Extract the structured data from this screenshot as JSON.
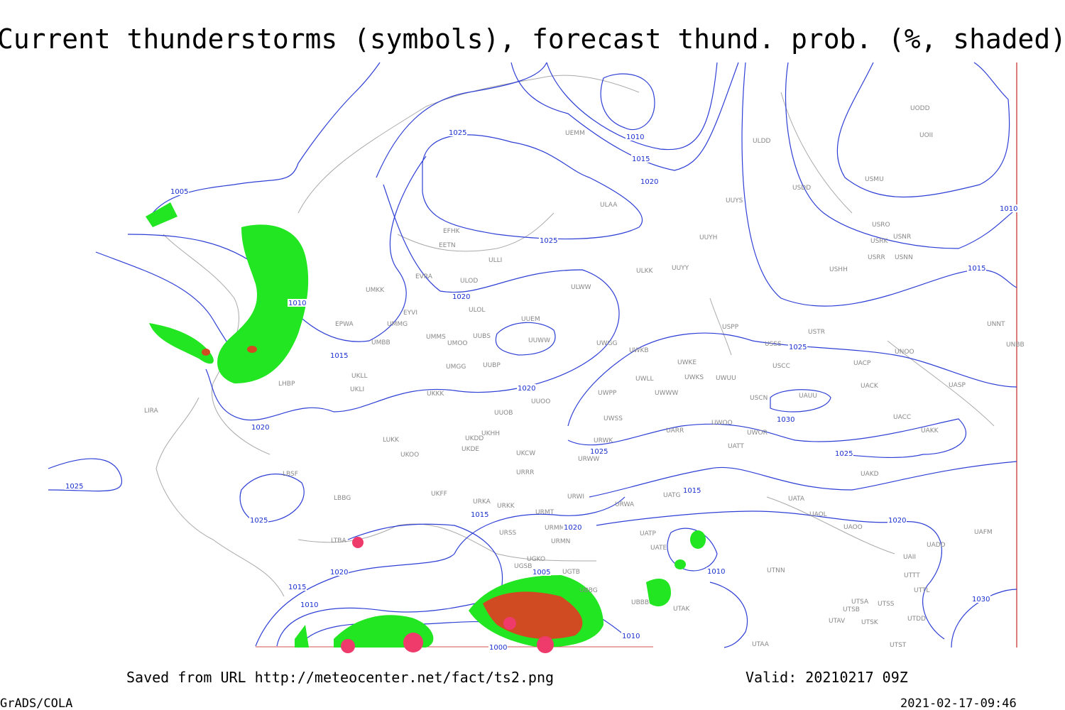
{
  "title": "Current thunderstorms (symbols), forecast thund. prob. (%, shaded)",
  "stations": [
    "ULDD",
    "UODD",
    "UOII",
    "USMU",
    "USDD",
    "UUYS",
    "ULAA",
    "USRO",
    "USRK",
    "USNR",
    "USRR",
    "USNN",
    "EFHK",
    "EETN",
    "UUYH",
    "USHH",
    "ULLI",
    "ULKK",
    "UUYY",
    "EVRA",
    "ULOD",
    "ULWW",
    "UMKK",
    "ULOL",
    "EYVI",
    "UUEM",
    "EPWA",
    "UMMG",
    "USPP",
    "USTR",
    "UNNT",
    "UMMS",
    "UMOO",
    "UUBS",
    "UUWW",
    "UWGG",
    "UWKB",
    "USSS",
    "UNOO",
    "UNBB",
    "UMBB",
    "UWKE",
    "UWKS",
    "UWUU",
    "USCC",
    "UACP",
    "UMGG",
    "UUBP",
    "UKLL",
    "UKLI",
    "UWLL",
    "UWWW",
    "USCN",
    "UAUU",
    "UACK",
    "UASP",
    "LHBP",
    "UKKK",
    "UWPP",
    "UUOO",
    "LIRA",
    "UUOB",
    "UWSS",
    "UACC",
    "UKHH",
    "UAKK",
    "UARR",
    "UWOO",
    "UWOR",
    "LUKK",
    "UKDD",
    "UKDE",
    "URWK",
    "UATT",
    "UKOO",
    "UKCW",
    "URWW",
    "UAKD",
    "LBSF",
    "URRR",
    "UKFF",
    "URKA",
    "URKK",
    "URWI",
    "UATG",
    "URWA",
    "UATA",
    "LBBG",
    "URMT",
    "UAOL",
    "UAOO",
    "URSS",
    "URMM",
    "UAFM",
    "UATP",
    "LTBA",
    "URMN",
    "UATE",
    "UADD",
    "UGKO",
    "UAII",
    "UGSB",
    "UGTB",
    "UTNN",
    "UTTT",
    "UBBG",
    "UBBB",
    "UTAK",
    "UTTL",
    "UTSA",
    "UTSS",
    "UTSB",
    "UTAV",
    "UTSK",
    "UTDD",
    "UTAA",
    "UTST",
    "UEMM"
  ],
  "isobar_labels": [
    "1005",
    "1025",
    "1010",
    "1015",
    "1020",
    "1010",
    "1025",
    "1015",
    "1020",
    "1010",
    "1015",
    "1025",
    "1020",
    "1030",
    "1020",
    "1025",
    "1025",
    "1025",
    "1015",
    "1025",
    "1015",
    "1020",
    "1020",
    "1020",
    "1010",
    "1005",
    "1015",
    "1030",
    "1010",
    "1010",
    "1000"
  ],
  "footer": {
    "source": "Saved from URL http://meteocenter.net/fact/ts2.png",
    "valid": "Valid: 20210217 09Z",
    "software": "GrADS/COLA",
    "timestamp": "2021-02-17-09:46"
  }
}
